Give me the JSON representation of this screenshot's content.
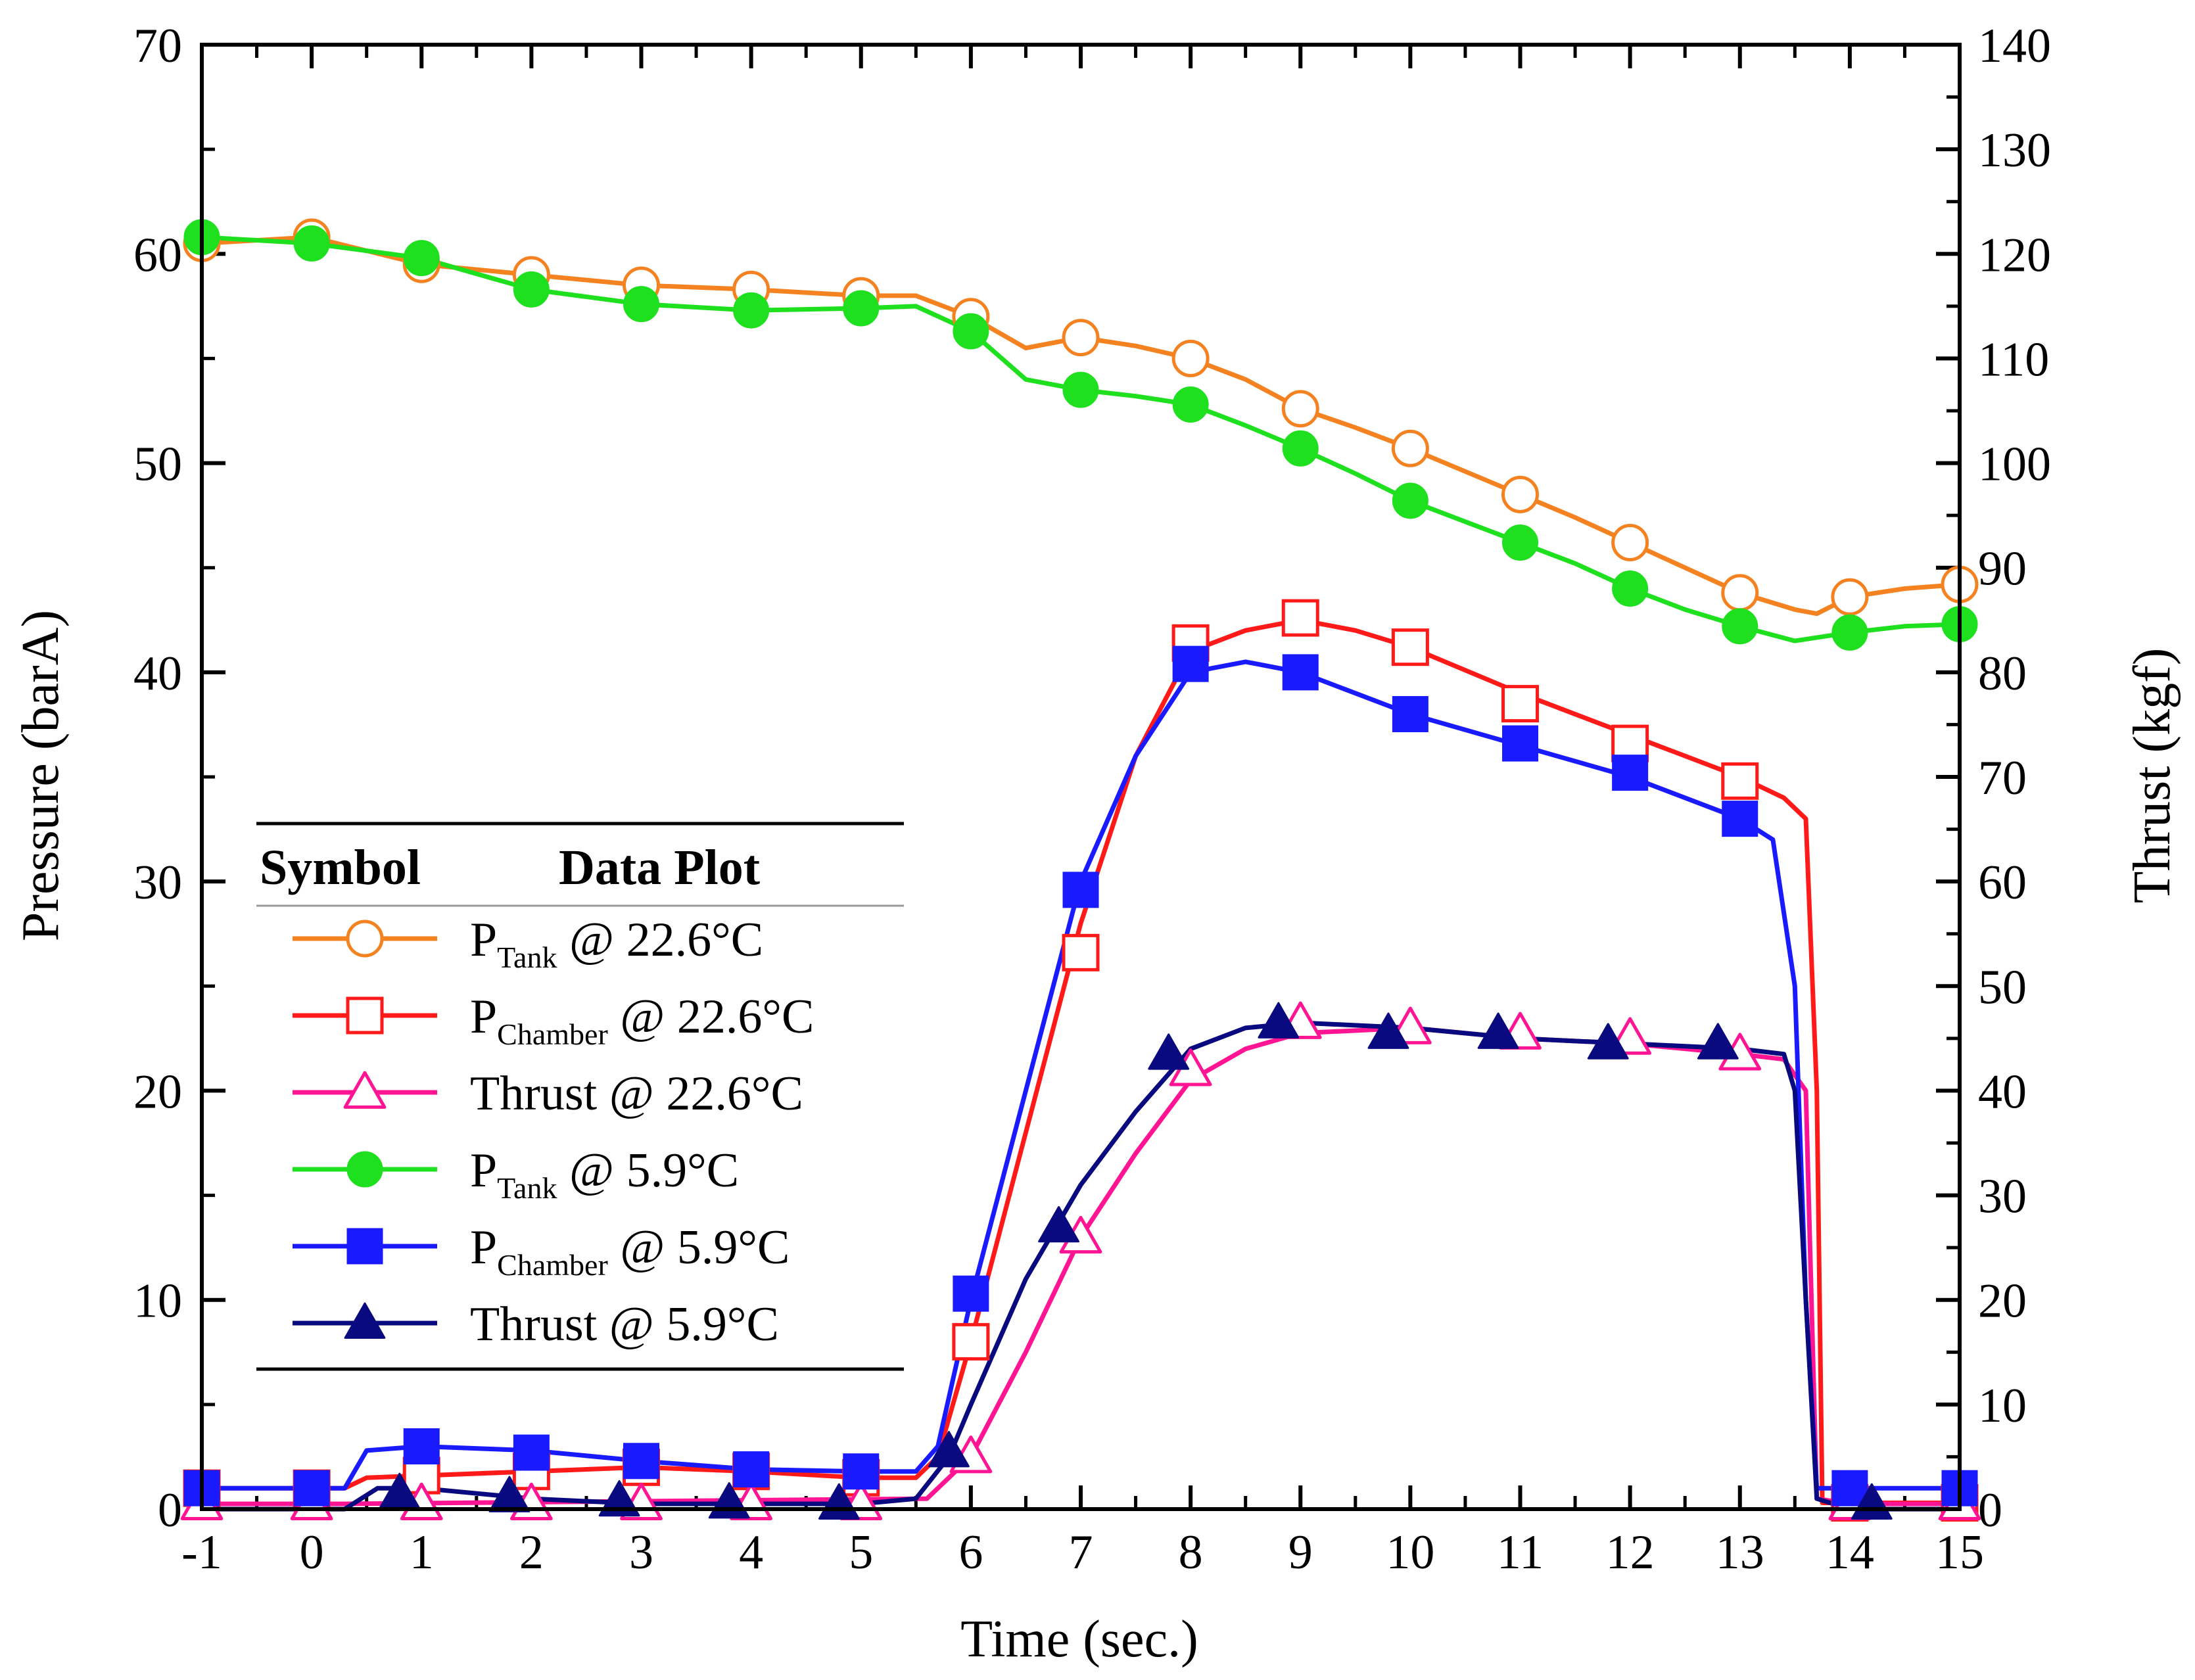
{
  "chart_data": {
    "type": "line",
    "title": "",
    "xlabel": "Time (sec.)",
    "ylabel_left": "Pressure (barA)",
    "ylabel_right": "Thrust (kgf)",
    "xlim": [
      -1,
      15
    ],
    "ylim_left": [
      0,
      70
    ],
    "ylim_right": [
      0,
      140
    ],
    "x_ticks": [
      "-1",
      "0",
      "1",
      "2",
      "3",
      "4",
      "5",
      "6",
      "7",
      "8",
      "9",
      "10",
      "11",
      "12",
      "13",
      "14",
      "15"
    ],
    "y_left_ticks": [
      "0",
      "10",
      "20",
      "30",
      "40",
      "50",
      "60",
      "70"
    ],
    "y_right_ticks": [
      "0",
      "10",
      "20",
      "30",
      "40",
      "50",
      "60",
      "70",
      "80",
      "90",
      "100",
      "110",
      "120",
      "130",
      "140"
    ],
    "legend": {
      "header_symbol": "Symbol",
      "header_plot": "Data Plot",
      "placement": "left-center"
    },
    "series": [
      {
        "name": "P_Tank @ 22.6°C",
        "label_main": "P",
        "label_sub": "Tank",
        "label_rest": " @ 22.6°C",
        "axis": "left",
        "color": "#F58220",
        "marker": "circle-open",
        "x": [
          -1,
          0,
          1,
          2,
          3,
          4,
          5,
          5.5,
          6,
          6.5,
          7,
          7.5,
          8,
          8.5,
          9,
          9.5,
          10,
          10.5,
          11,
          11.5,
          12,
          12.5,
          13,
          13.5,
          13.7,
          14,
          14.5,
          15
        ],
        "y": [
          60.5,
          60.8,
          59.5,
          59.0,
          58.5,
          58.3,
          58.0,
          58.0,
          57.0,
          55.5,
          56.0,
          55.6,
          55.0,
          54.0,
          52.6,
          51.7,
          50.7,
          49.6,
          48.5,
          47.4,
          46.2,
          45.0,
          43.8,
          43.0,
          42.8,
          43.6,
          44.0,
          44.2
        ],
        "markers_x": [
          -1,
          0,
          1,
          2,
          3,
          4,
          5,
          6,
          7,
          8,
          9,
          10,
          11,
          12,
          13,
          14,
          15
        ],
        "markers_y": [
          60.5,
          60.8,
          59.5,
          59.0,
          58.5,
          58.3,
          58.0,
          57.0,
          56.0,
          55.0,
          52.6,
          50.7,
          48.5,
          46.2,
          43.8,
          43.6,
          44.2
        ]
      },
      {
        "name": "P_Chamber @ 22.6°C",
        "label_main": "P",
        "label_sub": "Chamber",
        "label_rest": " @ 22.6°C",
        "axis": "left",
        "color": "#FF1A1A",
        "marker": "square-open",
        "x": [
          -1,
          0,
          0.3,
          0.5,
          1,
          2,
          3,
          4,
          5,
          5.5,
          5.7,
          6,
          6.5,
          7,
          7.5,
          8,
          8.5,
          9,
          9.5,
          10,
          11,
          12,
          13,
          13.4,
          13.6,
          13.7,
          13.75,
          14,
          15
        ],
        "y": [
          1.0,
          1.0,
          1.0,
          1.5,
          1.6,
          1.8,
          2.0,
          1.8,
          1.5,
          1.5,
          2.5,
          8.0,
          18.0,
          28.0,
          36.0,
          41.0,
          42.0,
          42.5,
          42.0,
          41.2,
          39.0,
          37.0,
          35.0,
          34.0,
          33.0,
          20.0,
          0.3,
          0.3,
          0.3
        ],
        "markers_x": [
          -1,
          0,
          1,
          2,
          3,
          4,
          5,
          6,
          7,
          8,
          9,
          10,
          11,
          12,
          13,
          14,
          15
        ],
        "markers_y": [
          1.0,
          1.0,
          1.6,
          1.8,
          2.0,
          1.8,
          1.5,
          8.0,
          26.6,
          41.4,
          42.6,
          41.2,
          38.5,
          36.6,
          34.8,
          0.3,
          0.3
        ]
      },
      {
        "name": "Thrust @ 22.6°C",
        "label_main": "Thrust",
        "label_sub": "",
        "label_rest": " @ 22.6°C",
        "axis": "right",
        "color": "#FF1493",
        "marker": "triangle-open",
        "x": [
          -1,
          0.3,
          5.6,
          6,
          6.5,
          7,
          7.5,
          8,
          8.5,
          9,
          10,
          11,
          12,
          13,
          13.4,
          13.6,
          13.7,
          14,
          15
        ],
        "y": [
          0.5,
          0.5,
          1.0,
          5.0,
          15.0,
          26.0,
          34.0,
          41.0,
          44.0,
          45.5,
          46.0,
          45.0,
          44.5,
          43.5,
          43.0,
          40.0,
          1.0,
          0.5,
          0.5
        ],
        "markers_x": [
          -1,
          0,
          1,
          2,
          3,
          4,
          5,
          6,
          7,
          8,
          9,
          10,
          11,
          12,
          13,
          14,
          15
        ],
        "markers_y": [
          0.5,
          0.5,
          0.5,
          0.5,
          0.5,
          0.5,
          0.5,
          5.0,
          26.0,
          42.0,
          46.5,
          46.0,
          45.5,
          45.0,
          43.5,
          0.5,
          0.5
        ]
      },
      {
        "name": "P_Tank @ 5.9°C",
        "label_main": "P",
        "label_sub": "Tank",
        "label_rest": " @ 5.9°C",
        "axis": "left",
        "color": "#1EE01E",
        "marker": "circle-filled",
        "x": [
          -1,
          0,
          1,
          2,
          3,
          4,
          5,
          5.5,
          6,
          6.5,
          7,
          7.5,
          8,
          8.5,
          9,
          9.5,
          10,
          10.5,
          11,
          11.5,
          12,
          12.5,
          13,
          13.5,
          14,
          14.5,
          15
        ],
        "y": [
          60.8,
          60.5,
          59.8,
          58.3,
          57.6,
          57.3,
          57.4,
          57.5,
          56.3,
          54.0,
          53.5,
          53.2,
          52.8,
          51.8,
          50.7,
          49.5,
          48.2,
          47.2,
          46.2,
          45.2,
          44.0,
          43.0,
          42.2,
          41.5,
          41.9,
          42.2,
          42.3
        ],
        "markers_x": [
          -1,
          0,
          1,
          2,
          3,
          4,
          5,
          6,
          7,
          8,
          9,
          10,
          11,
          12,
          13,
          14,
          15
        ],
        "markers_y": [
          60.8,
          60.5,
          59.8,
          58.3,
          57.6,
          57.3,
          57.4,
          56.3,
          53.5,
          52.8,
          50.7,
          48.2,
          46.2,
          44.0,
          42.2,
          41.9,
          42.3
        ]
      },
      {
        "name": "P_Chamber @ 5.9°C",
        "label_main": "P",
        "label_sub": "Chamber",
        "label_rest": " @ 5.9°C",
        "axis": "left",
        "color": "#1A1AFF",
        "marker": "square-filled",
        "x": [
          -1,
          0,
          0.3,
          0.5,
          1,
          2,
          3,
          4,
          5,
          5.5,
          5.7,
          6,
          6.5,
          7,
          7.5,
          8,
          8.5,
          9,
          9.5,
          10,
          11,
          12,
          13,
          13.3,
          13.5,
          13.6,
          13.7,
          14,
          15
        ],
        "y": [
          1.0,
          1.0,
          1.0,
          2.8,
          3.0,
          2.8,
          2.3,
          1.9,
          1.8,
          1.8,
          3.0,
          10.0,
          20.0,
          30.0,
          36.0,
          40.0,
          40.5,
          40.0,
          39.0,
          38.0,
          36.5,
          35.0,
          33.0,
          32.0,
          25.0,
          10.0,
          1.0,
          1.0,
          1.0
        ],
        "markers_x": [
          -1,
          0,
          1,
          2,
          3,
          4,
          5,
          6,
          7,
          8,
          9,
          10,
          11,
          12,
          13,
          14,
          15
        ],
        "markers_y": [
          1.0,
          1.0,
          3.0,
          2.7,
          2.3,
          1.9,
          1.8,
          10.3,
          29.6,
          40.4,
          40.0,
          38.0,
          36.6,
          35.2,
          33.0,
          1.0,
          1.0
        ]
      },
      {
        "name": "Thrust @ 5.9°C",
        "label_main": "Thrust",
        "label_sub": "",
        "label_rest": " @ 5.9°C",
        "axis": "right",
        "color": "#0A0A80",
        "marker": "triangle-filled",
        "x": [
          -1,
          0,
          0.3,
          0.6,
          1,
          2,
          3,
          4,
          5,
          5.5,
          5.8,
          6,
          6.5,
          7,
          7.5,
          8,
          8.5,
          9,
          10,
          11,
          12,
          13,
          13.4,
          13.5,
          13.6,
          13.7,
          14,
          15
        ],
        "y": [
          0,
          0,
          0,
          2.0,
          2.0,
          1.0,
          0.5,
          0.5,
          0.5,
          1.0,
          5.0,
          10.0,
          22.0,
          31.0,
          38.0,
          44.0,
          46.0,
          46.5,
          46.0,
          45.0,
          44.5,
          44.0,
          43.5,
          40.0,
          20.0,
          1.0,
          0,
          0
        ],
        "markers_x": [
          0.8,
          1.8,
          2.8,
          3.8,
          4.8,
          5.8,
          6.8,
          7.8,
          8.8,
          9.8,
          10.8,
          11.8,
          12.8,
          14.2
        ],
        "markers_y": [
          1.5,
          1.2,
          0.8,
          0.6,
          0.5,
          5.5,
          27.0,
          43.5,
          46.5,
          45.5,
          45.5,
          44.5,
          44.5,
          0.5
        ]
      }
    ]
  }
}
